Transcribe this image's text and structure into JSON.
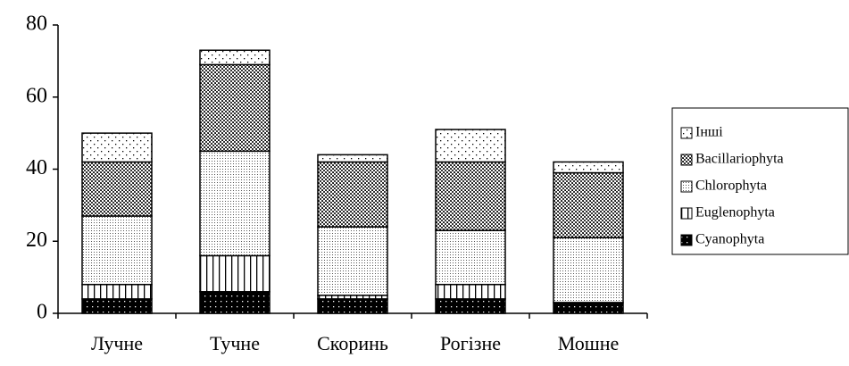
{
  "chart_data": {
    "type": "stacked_bar",
    "categories": [
      "Лучне",
      "Тучне",
      "Скоринь",
      "Рогізне",
      "Мошне"
    ],
    "series": [
      {
        "name": "Cyanophyta",
        "color": "#000000",
        "values": [
          4,
          6,
          4,
          4,
          3
        ]
      },
      {
        "name": "Euglenophyta",
        "color": "#000000",
        "values": [
          4,
          10,
          1,
          4,
          0
        ]
      },
      {
        "name": "Chlorophyta",
        "color": "#000000",
        "values": [
          19,
          29,
          19,
          15,
          18
        ]
      },
      {
        "name": "Bacillariophyta",
        "color": "#000000",
        "values": [
          15,
          24,
          18,
          19,
          18
        ]
      },
      {
        "name": "Інші",
        "color": "#000000",
        "values": [
          8,
          4,
          2,
          9,
          3
        ]
      }
    ],
    "ylim": [
      0,
      80
    ],
    "yticks": [
      0,
      20,
      40,
      60,
      80
    ],
    "grid": false,
    "legend": "right"
  }
}
